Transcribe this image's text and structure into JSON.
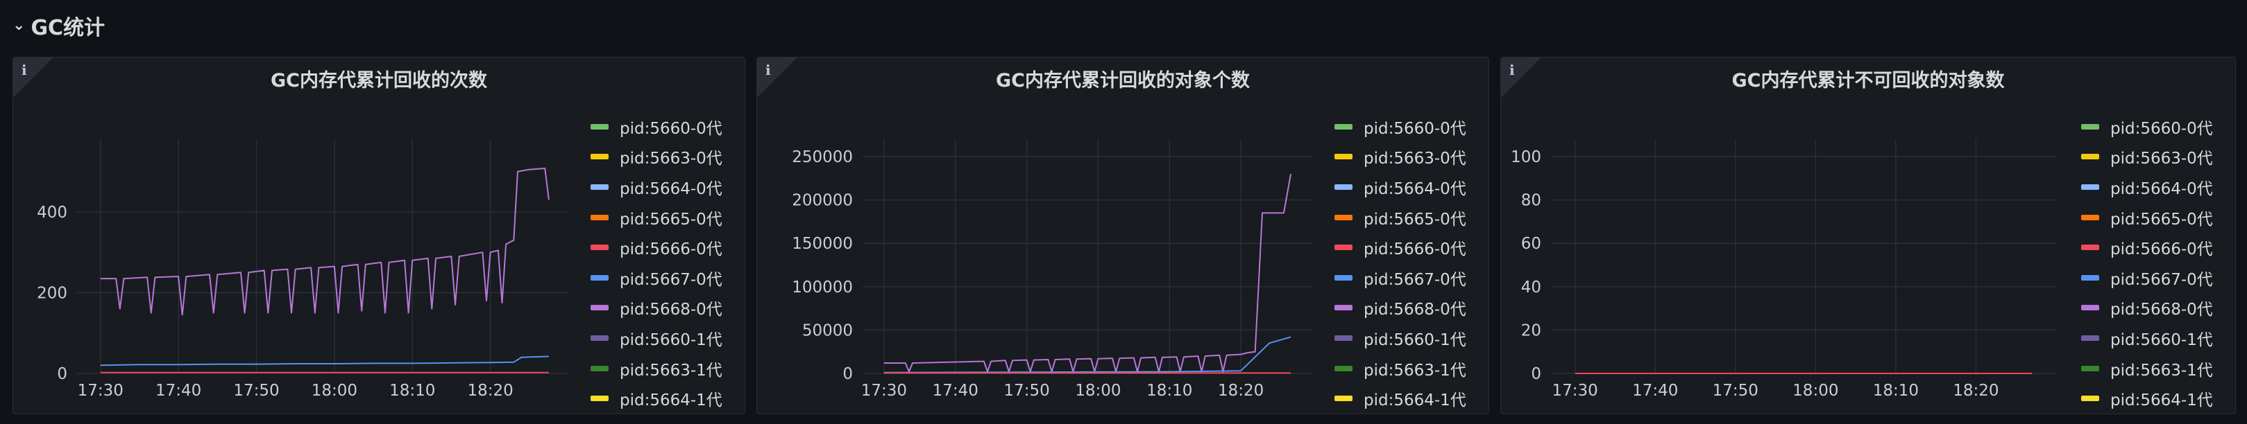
{
  "row": {
    "title": "GC统计",
    "chevron_icon": "chevron-down-icon"
  },
  "legend_colors": [
    "#73bf69",
    "#f2cc0c",
    "#8ab8ff",
    "#ff780a",
    "#f2495c",
    "#5794f2",
    "#b877d9",
    "#705da0",
    "#37872d",
    "#fade2a"
  ],
  "panels": [
    {
      "title": "GC内存代累计回收的次数",
      "info_icon": "info-icon",
      "legend": [
        "pid:5660-0代",
        "pid:5663-0代",
        "pid:5664-0代",
        "pid:5665-0代",
        "pid:5666-0代",
        "pid:5667-0代",
        "pid:5668-0代",
        "pid:5660-1代",
        "pid:5663-1代",
        "pid:5664-1代"
      ]
    },
    {
      "title": "GC内存代累计回收的对象个数",
      "info_icon": "info-icon",
      "legend": [
        "pid:5660-0代",
        "pid:5663-0代",
        "pid:5664-0代",
        "pid:5665-0代",
        "pid:5666-0代",
        "pid:5667-0代",
        "pid:5668-0代",
        "pid:5660-1代",
        "pid:5663-1代",
        "pid:5664-1代"
      ]
    },
    {
      "title": "GC内存代累计不可回收的对象数",
      "info_icon": "info-icon",
      "legend": [
        "pid:5660-0代",
        "pid:5663-0代",
        "pid:5664-0代",
        "pid:5665-0代",
        "pid:5666-0代",
        "pid:5667-0代",
        "pid:5668-0代",
        "pid:5660-1代",
        "pid:5663-1代",
        "pid:5664-1代"
      ]
    }
  ],
  "chart_data": [
    {
      "type": "line",
      "title": "GC内存代累计回收的次数",
      "x_ticks": [
        "17:30",
        "17:40",
        "17:50",
        "18:00",
        "18:10",
        "18:20"
      ],
      "y_ticks": [
        0,
        200,
        400
      ],
      "ylim": [
        0,
        580
      ],
      "x_range_minutes": [
        -3,
        60
      ],
      "grid": true,
      "legend_placement": "right",
      "series": [
        {
          "name": "pid:5668-0代",
          "color": "#b877d9",
          "points": [
            [
              0,
              235
            ],
            [
              2,
              235
            ],
            [
              2.5,
              160
            ],
            [
              3,
              235
            ],
            [
              6,
              238
            ],
            [
              6.5,
              150
            ],
            [
              7,
              238
            ],
            [
              10,
              240
            ],
            [
              10.5,
              145
            ],
            [
              11,
              240
            ],
            [
              14,
              245
            ],
            [
              14.5,
              150
            ],
            [
              15,
              245
            ],
            [
              18,
              250
            ],
            [
              18.5,
              150
            ],
            [
              19,
              250
            ],
            [
              21,
              255
            ],
            [
              21.5,
              150
            ],
            [
              22,
              255
            ],
            [
              24,
              258
            ],
            [
              24.5,
              150
            ],
            [
              25,
              258
            ],
            [
              27,
              262
            ],
            [
              27.5,
              150
            ],
            [
              28,
              262
            ],
            [
              30,
              265
            ],
            [
              30.5,
              150
            ],
            [
              31,
              265
            ],
            [
              33,
              270
            ],
            [
              33.5,
              155
            ],
            [
              34,
              270
            ],
            [
              36,
              275
            ],
            [
              36.5,
              150
            ],
            [
              37,
              275
            ],
            [
              39,
              280
            ],
            [
              39.5,
              150
            ],
            [
              40,
              280
            ],
            [
              42,
              285
            ],
            [
              42.5,
              160
            ],
            [
              43,
              285
            ],
            [
              45,
              290
            ],
            [
              45.5,
              170
            ],
            [
              46,
              290
            ],
            [
              49,
              300
            ],
            [
              49.5,
              180
            ],
            [
              50,
              300
            ],
            [
              51,
              305
            ],
            [
              51.5,
              175
            ],
            [
              52,
              320
            ],
            [
              53,
              330
            ],
            [
              53.5,
              500
            ],
            [
              55,
              505
            ],
            [
              57,
              508
            ],
            [
              57.5,
              430
            ]
          ]
        },
        {
          "name": "pid:5660-0代",
          "color": "#5794f2",
          "points": [
            [
              0,
              20
            ],
            [
              5,
              22
            ],
            [
              10,
              22
            ],
            [
              15,
              23
            ],
            [
              20,
              23
            ],
            [
              25,
              24
            ],
            [
              30,
              24
            ],
            [
              35,
              25
            ],
            [
              40,
              25
            ],
            [
              45,
              26
            ],
            [
              50,
              27
            ],
            [
              53,
              28
            ],
            [
              54,
              40
            ],
            [
              57.5,
              42
            ]
          ]
        },
        {
          "name": "pid:5664-0代",
          "color": "#f2495c",
          "points": [
            [
              0,
              2
            ],
            [
              57.5,
              2
            ]
          ]
        }
      ]
    },
    {
      "type": "line",
      "title": "GC内存代累计回收的对象个数",
      "x_ticks": [
        "17:30",
        "17:40",
        "17:50",
        "18:00",
        "18:10",
        "18:20"
      ],
      "y_ticks": [
        0,
        50000,
        100000,
        150000,
        200000,
        250000
      ],
      "ylim": [
        0,
        270000
      ],
      "x_range_minutes": [
        -3,
        60
      ],
      "grid": true,
      "legend_placement": "right",
      "series": [
        {
          "name": "pid:5668-0代",
          "color": "#b877d9",
          "points": [
            [
              0,
              12000
            ],
            [
              3,
              12000
            ],
            [
              3.5,
              2000
            ],
            [
              4,
              12000
            ],
            [
              14,
              14000
            ],
            [
              14.5,
              2000
            ],
            [
              15,
              14000
            ],
            [
              17,
              15000
            ],
            [
              17.5,
              2000
            ],
            [
              18,
              15000
            ],
            [
              20,
              15500
            ],
            [
              20.5,
              2000
            ],
            [
              21,
              15500
            ],
            [
              23,
              16000
            ],
            [
              23.5,
              2000
            ],
            [
              24,
              16000
            ],
            [
              26,
              16500
            ],
            [
              26.5,
              2000
            ],
            [
              27,
              16500
            ],
            [
              29,
              17000
            ],
            [
              29.5,
              2000
            ],
            [
              30,
              17000
            ],
            [
              32,
              17500
            ],
            [
              32.5,
              2000
            ],
            [
              33,
              17500
            ],
            [
              35,
              18000
            ],
            [
              35.5,
              2000
            ],
            [
              36,
              18000
            ],
            [
              38,
              18500
            ],
            [
              38.5,
              2000
            ],
            [
              39,
              18500
            ],
            [
              41,
              19000
            ],
            [
              41.5,
              2000
            ],
            [
              42,
              19000
            ],
            [
              44,
              20000
            ],
            [
              44.5,
              2000
            ],
            [
              45,
              20000
            ],
            [
              47,
              21000
            ],
            [
              47.5,
              2000
            ],
            [
              48,
              21000
            ],
            [
              50,
              22000
            ],
            [
              51,
              24000
            ],
            [
              52,
              25000
            ],
            [
              53,
              185000
            ],
            [
              56,
              185000
            ],
            [
              57,
              230000
            ]
          ]
        },
        {
          "name": "pid:5660-0代",
          "color": "#5794f2",
          "points": [
            [
              0,
              1000
            ],
            [
              20,
              1500
            ],
            [
              40,
              2000
            ],
            [
              50,
              3000
            ],
            [
              54,
              35000
            ],
            [
              57,
              42000
            ]
          ]
        },
        {
          "name": "pid:5664-0代",
          "color": "#f2495c",
          "points": [
            [
              0,
              500
            ],
            [
              57,
              500
            ]
          ]
        }
      ]
    },
    {
      "type": "line",
      "title": "GC内存代累计不可回收的对象数",
      "x_ticks": [
        "17:30",
        "17:40",
        "17:50",
        "18:00",
        "18:10",
        "18:20"
      ],
      "y_ticks": [
        0,
        20,
        40,
        60,
        80,
        100
      ],
      "ylim": [
        0,
        108
      ],
      "x_range_minutes": [
        -3,
        60
      ],
      "grid": true,
      "legend_placement": "right",
      "series": [
        {
          "name": "pid:5660-0代",
          "color": "#f2495c",
          "points": [
            [
              0,
              0
            ],
            [
              57,
              0
            ]
          ]
        }
      ]
    }
  ]
}
